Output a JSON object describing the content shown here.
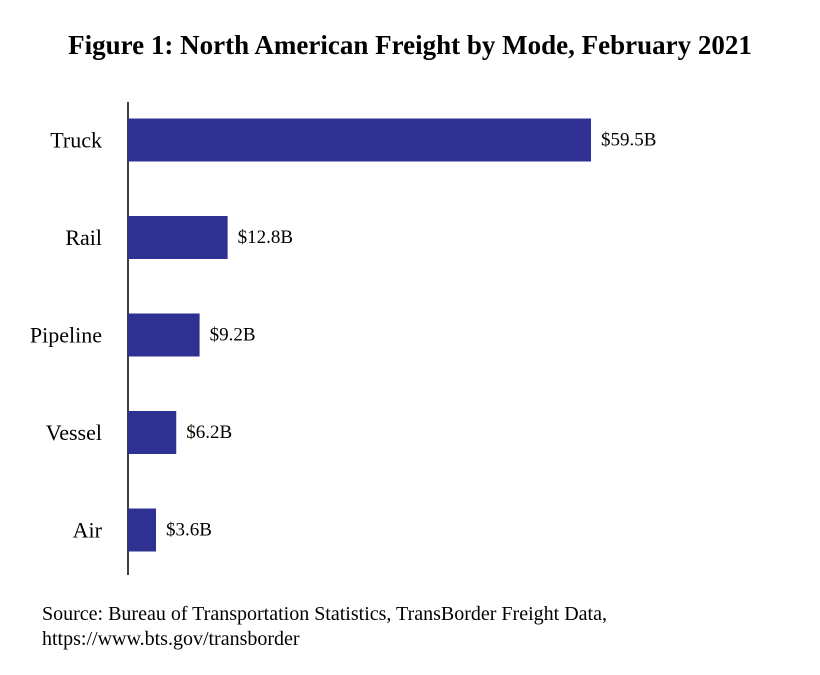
{
  "chart_data": {
    "type": "bar",
    "orientation": "horizontal",
    "title": "Figure 1: North American Freight by Mode, February 2021",
    "categories": [
      "Truck",
      "Rail",
      "Pipeline",
      "Vessel",
      "Air"
    ],
    "values": [
      59.5,
      12.8,
      9.2,
      6.2,
      3.6
    ],
    "data_labels": [
      "$59.5B",
      "$12.8B",
      "$9.2B",
      "$6.2B",
      "$3.6B"
    ],
    "xlabel": "",
    "ylabel": "",
    "xlim": [
      0,
      59.5
    ],
    "grid": false,
    "legend": "none",
    "bar_color": "#2e3192"
  },
  "source": {
    "line1": "Source: Bureau of Transportation Statistics, TransBorder Freight Data,",
    "line2": "https://www.bts.gov/transborder"
  }
}
